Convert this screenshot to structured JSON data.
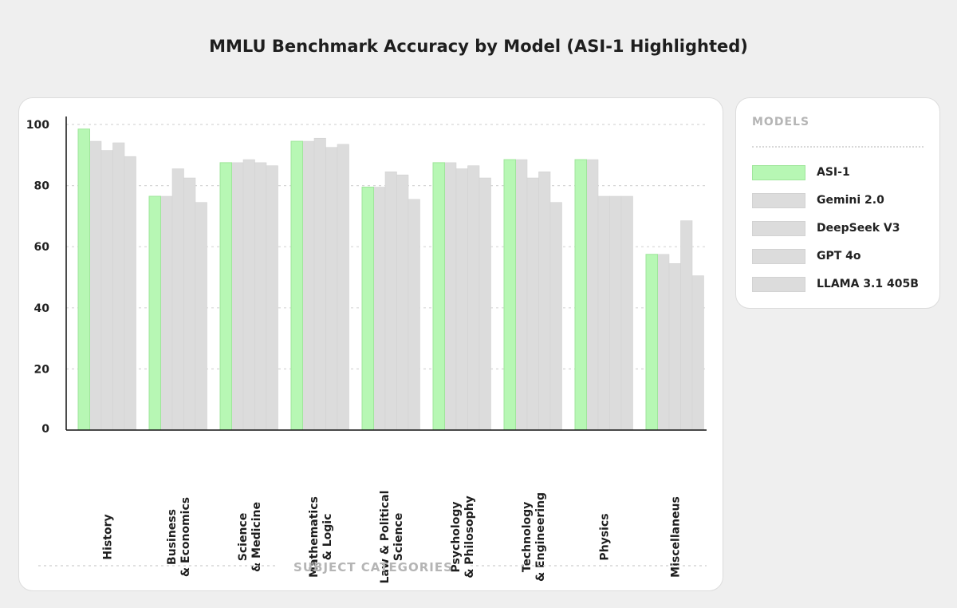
{
  "title": "MMLU Benchmark Accuracy by Model (ASI-1 Highlighted)",
  "legend": {
    "title": "MODELS",
    "items": [
      {
        "label": "ASI-1",
        "color": "#b7f7b4",
        "border": "#9fe69b"
      },
      {
        "label": "Gemini 2.0",
        "color": "#dcdcdc",
        "border": "#d2d2d2"
      },
      {
        "label": "DeepSeek V3",
        "color": "#dcdcdc",
        "border": "#d2d2d2"
      },
      {
        "label": "GPT 4o",
        "color": "#dcdcdc",
        "border": "#d2d2d2"
      },
      {
        "label": "LLAMA 3.1 405B",
        "color": "#dcdcdc",
        "border": "#d2d2d2"
      }
    ]
  },
  "chart_data": {
    "type": "bar",
    "title": "MMLU Benchmark Accuracy by Model (ASI-1 Highlighted)",
    "xlabel": "SUBJECT CATEGORIES",
    "ylabel": "",
    "ylim": [
      0,
      100
    ],
    "yticks": [
      0,
      20,
      40,
      60,
      80,
      100
    ],
    "grid": true,
    "legend_position": "right",
    "categories": [
      [
        "History"
      ],
      [
        "Business",
        "& Economics"
      ],
      [
        "Science",
        "& Medicine"
      ],
      [
        "Mathematics",
        "& Logic"
      ],
      [
        "Law & Political",
        "Science"
      ],
      [
        "Psychology",
        "& Philosophy"
      ],
      [
        "Technology",
        "& Engineering"
      ],
      [
        "Physics"
      ],
      [
        "Miscellaneus"
      ]
    ],
    "series": [
      {
        "name": "ASI-1",
        "values": [
          98.5,
          76.5,
          87.5,
          94.5,
          79.5,
          87.5,
          88.5,
          88.5,
          57.5
        ]
      },
      {
        "name": "Gemini 2.0",
        "values": [
          94.5,
          76.5,
          87.5,
          94.5,
          79.5,
          87.5,
          88.5,
          88.5,
          57.5
        ]
      },
      {
        "name": "DeepSeek V3",
        "values": [
          91.5,
          85.5,
          88.5,
          95.5,
          84.5,
          85.5,
          82.5,
          76.5,
          54.5
        ]
      },
      {
        "name": "GPT 4o",
        "values": [
          94.0,
          82.5,
          87.5,
          92.5,
          83.5,
          86.5,
          84.5,
          76.5,
          68.5
        ]
      },
      {
        "name": "LLAMA 3.1 405B",
        "values": [
          89.5,
          74.5,
          86.5,
          93.5,
          75.5,
          82.5,
          74.5,
          76.5,
          50.5
        ]
      }
    ]
  }
}
